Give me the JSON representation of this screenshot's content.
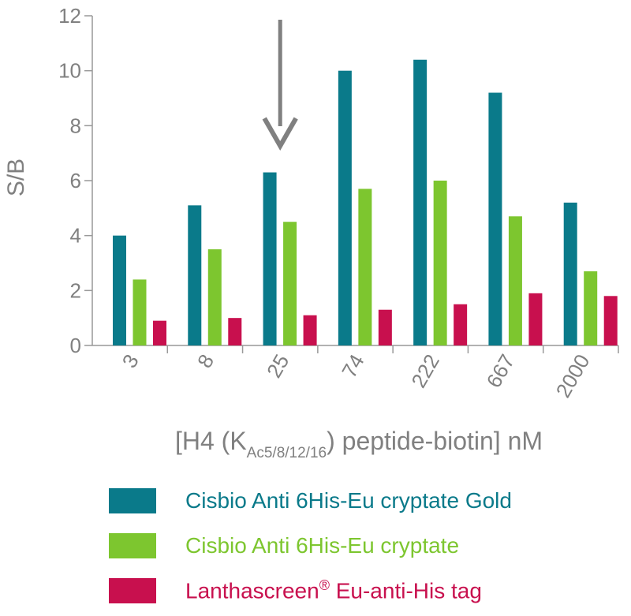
{
  "chart_data": {
    "type": "bar",
    "categories": [
      "3",
      "8",
      "25",
      "74",
      "222",
      "667",
      "2000"
    ],
    "series": [
      {
        "name": "Cisbio Anti 6His-Eu cryptate Gold",
        "color": "#0a7a8a",
        "values": [
          4.0,
          5.1,
          6.3,
          10.0,
          10.4,
          9.2,
          5.2
        ]
      },
      {
        "name": "Cisbio Anti 6His-Eu cryptate",
        "color": "#7dc62f",
        "values": [
          2.4,
          3.5,
          4.5,
          5.7,
          6.0,
          4.7,
          2.7
        ]
      },
      {
        "name": "Lanthascreen",
        "name_superscript": "®",
        "name_suffix": " Eu-anti-His tag",
        "color": "#c8104e",
        "values": [
          0.9,
          1.0,
          1.1,
          1.3,
          1.5,
          1.9,
          1.8
        ]
      }
    ],
    "ylabel": "S/B",
    "xlabel": {
      "prefix": "[H4 (K",
      "subscript": "Ac5/8/12/16",
      "suffix": ") peptide-biotin] nM"
    },
    "ylim": [
      0,
      12
    ],
    "yticks": [
      "0",
      "2",
      "4",
      "6",
      "8",
      "10",
      "12"
    ],
    "grid": "none",
    "legend_position": "bottom",
    "annotation": {
      "type": "arrow-down",
      "category": "25",
      "color": "#808080"
    }
  }
}
